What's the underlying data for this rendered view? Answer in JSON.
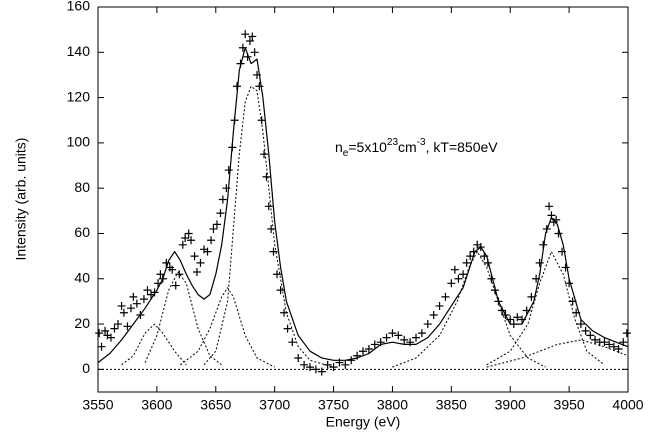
{
  "chart_data": {
    "type": "line",
    "xlabel": "Energy (eV)",
    "ylabel": "Intensity (arb. units)",
    "annotation": [
      "n",
      "e",
      "=5x10",
      "23",
      "cm",
      "-3",
      ", kT=850eV"
    ],
    "xlim": [
      3550,
      4000
    ],
    "ylim": [
      -10,
      160
    ],
    "xticks": [
      3550,
      3600,
      3650,
      3700,
      3750,
      3800,
      3850,
      3900,
      3950,
      4000
    ],
    "yticks": [
      0,
      20,
      40,
      60,
      80,
      100,
      120,
      140,
      160
    ],
    "series": [
      {
        "mode": "markers",
        "color": "#000000",
        "x": [
          3551,
          3553,
          3556,
          3558,
          3561,
          3564,
          3567,
          3570,
          3572,
          3575,
          3578,
          3580,
          3583,
          3586,
          3589,
          3592,
          3595,
          3598,
          3601,
          3603,
          3605,
          3608,
          3611,
          3613,
          3616,
          3619,
          3622,
          3624,
          3627,
          3629,
          3632,
          3634,
          3637,
          3640,
          3643,
          3646,
          3648,
          3651,
          3654,
          3656,
          3659,
          3661,
          3664,
          3666,
          3668,
          3671,
          3673,
          3675,
          3677,
          3679,
          3681,
          3683,
          3685,
          3687,
          3689,
          3691,
          3693,
          3695,
          3697,
          3699,
          3702,
          3705,
          3708,
          3711,
          3715,
          3720,
          3725,
          3730,
          3735,
          3740,
          3745,
          3750,
          3755,
          3760,
          3765,
          3770,
          3775,
          3780,
          3785,
          3790,
          3795,
          3800,
          3805,
          3810,
          3815,
          3820,
          3825,
          3830,
          3835,
          3840,
          3845,
          3850,
          3853,
          3856,
          3860,
          3863,
          3866,
          3869,
          3872,
          3875,
          3878,
          3881,
          3884,
          3887,
          3890,
          3893,
          3896,
          3900,
          3903,
          3906,
          3910,
          3914,
          3918,
          3922,
          3925,
          3928,
          3931,
          3933,
          3935,
          3937,
          3939,
          3941,
          3944,
          3947,
          3950,
          3953,
          3956,
          3960,
          3964,
          3968,
          3972,
          3976,
          3980,
          3984,
          3988,
          3992,
          3996,
          3999
        ],
        "values": [
          16,
          10,
          17,
          15,
          14,
          18,
          20,
          28,
          25,
          19,
          27,
          32,
          29,
          24,
          31,
          35,
          33,
          34,
          38,
          42,
          40,
          47,
          45,
          44,
          37,
          42,
          55,
          58,
          60,
          57,
          50,
          43,
          47,
          53,
          52,
          57,
          62,
          64,
          69,
          75,
          80,
          88,
          98,
          110,
          125,
          135,
          142,
          148,
          138,
          145,
          147,
          140,
          130,
          125,
          110,
          95,
          85,
          72,
          62,
          52,
          42,
          35,
          25,
          18,
          12,
          5,
          2,
          1,
          0,
          -1,
          2,
          1,
          3,
          2,
          4,
          6,
          8,
          9,
          11,
          12,
          14,
          16,
          15,
          13,
          12,
          14,
          16,
          20,
          24,
          28,
          32,
          38,
          44,
          40,
          42,
          47,
          50,
          52,
          55,
          54,
          50,
          47,
          40,
          35,
          30,
          26,
          24,
          22,
          20,
          23,
          22,
          26,
          32,
          40,
          47,
          55,
          62,
          72,
          68,
          65,
          66,
          60,
          52,
          45,
          38,
          30,
          25,
          20,
          17,
          15,
          13,
          12,
          12,
          11,
          10,
          9,
          12,
          16
        ]
      },
      {
        "mode": "solid",
        "color": "#000000",
        "x": [
          3550,
          3560,
          3570,
          3580,
          3590,
          3600,
          3605,
          3610,
          3615,
          3620,
          3625,
          3630,
          3635,
          3640,
          3645,
          3650,
          3655,
          3660,
          3665,
          3670,
          3675,
          3680,
          3685,
          3690,
          3695,
          3700,
          3705,
          3710,
          3720,
          3730,
          3740,
          3750,
          3760,
          3770,
          3780,
          3790,
          3800,
          3810,
          3820,
          3830,
          3840,
          3850,
          3860,
          3865,
          3870,
          3875,
          3880,
          3885,
          3890,
          3900,
          3910,
          3920,
          3925,
          3930,
          3935,
          3940,
          3945,
          3950,
          3960,
          3970,
          3980,
          3990,
          4000
        ],
        "values": [
          3,
          7,
          13,
          20,
          27,
          35,
          40,
          48,
          52,
          48,
          42,
          37,
          33,
          31,
          33,
          42,
          55,
          75,
          105,
          132,
          142,
          135,
          137,
          120,
          95,
          65,
          45,
          30,
          15,
          8,
          5,
          4,
          4,
          5,
          7,
          11,
          12,
          11,
          11,
          14,
          20,
          28,
          36,
          44,
          52,
          54,
          50,
          40,
          30,
          20,
          20,
          30,
          42,
          60,
          67,
          64,
          55,
          40,
          22,
          17,
          14,
          12,
          10
        ]
      },
      {
        "mode": "dotted",
        "color": "#000000",
        "x": [
          3570,
          3580,
          3590,
          3598,
          3605,
          3615,
          3625
        ],
        "values": [
          2,
          6,
          16,
          20,
          16,
          8,
          2
        ]
      },
      {
        "mode": "dotted",
        "color": "#000000",
        "x": [
          3590,
          3600,
          3610,
          3618,
          3625,
          3635,
          3645,
          3655
        ],
        "values": [
          3,
          15,
          35,
          43,
          38,
          18,
          6,
          2
        ]
      },
      {
        "mode": "dotted",
        "color": "#000000",
        "x": [
          3620,
          3635,
          3645,
          3655,
          3660,
          3665,
          3675,
          3685,
          3700
        ],
        "values": [
          2,
          8,
          18,
          32,
          36,
          32,
          15,
          5,
          1
        ]
      },
      {
        "mode": "dotted",
        "color": "#000000",
        "x": [
          3640,
          3650,
          3660,
          3670,
          3675,
          3680,
          3685,
          3690,
          3695,
          3700,
          3710,
          3720,
          3730,
          3750
        ],
        "values": [
          2,
          8,
          30,
          95,
          118,
          125,
          123,
          105,
          80,
          55,
          25,
          10,
          4,
          1
        ]
      },
      {
        "mode": "dotted",
        "color": "#000000",
        "x": [
          3800,
          3820,
          3840,
          3855,
          3865,
          3872,
          3880,
          3890,
          3900,
          3915,
          3930
        ],
        "values": [
          1,
          5,
          15,
          30,
          45,
          52,
          45,
          30,
          15,
          5,
          1
        ]
      },
      {
        "mode": "dotted",
        "color": "#000000",
        "x": [
          3880,
          3900,
          3915,
          3925,
          3935,
          3945,
          3955,
          3965,
          3980
        ],
        "values": [
          2,
          8,
          20,
          38,
          52,
          42,
          22,
          8,
          2
        ]
      },
      {
        "mode": "dotted",
        "color": "#000000",
        "x": [
          3880,
          3910,
          3940,
          3960,
          3980,
          4000
        ],
        "values": [
          1,
          5,
          11,
          13,
          10,
          6
        ]
      }
    ]
  }
}
